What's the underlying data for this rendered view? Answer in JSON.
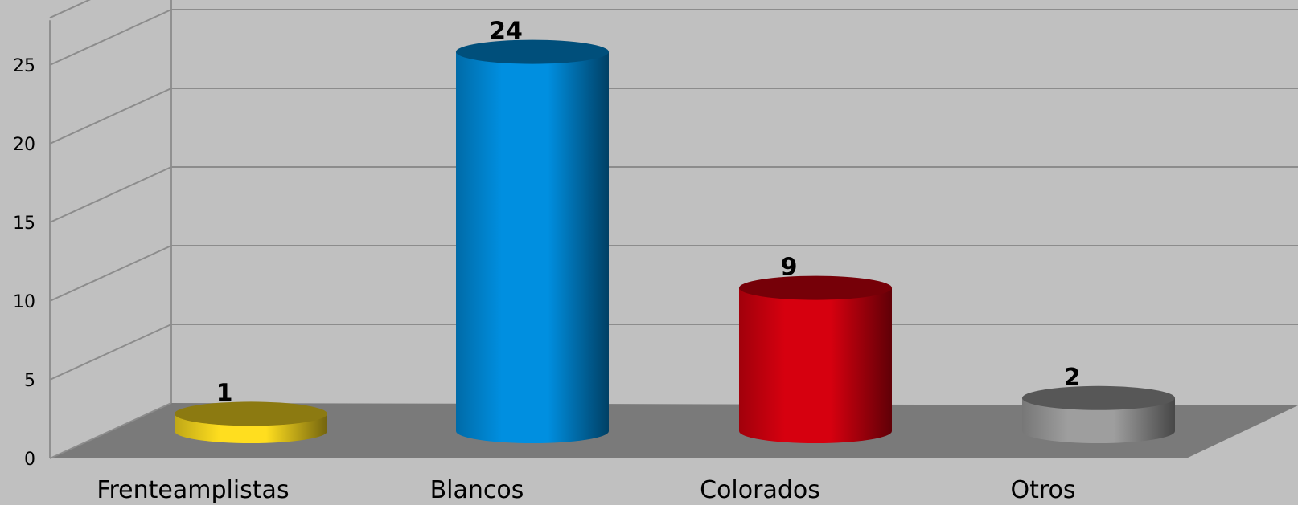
{
  "chart_data": {
    "type": "bar",
    "style": "3d-cylinder",
    "title": "",
    "xlabel": "",
    "ylabel": "",
    "categories": [
      "Frenteamplistas",
      "Blancos",
      "Colorados",
      "Otros"
    ],
    "values": [
      1,
      24,
      9,
      2
    ],
    "data_labels": [
      "1",
      "24",
      "9",
      "2"
    ],
    "colors": [
      "#ffde1f",
      "#008fe0",
      "#d6000f",
      "#9e9e9e"
    ],
    "ylim": [
      0,
      28
    ],
    "yticks": [
      0,
      5,
      10,
      15,
      20,
      25
    ],
    "ytick_labels": [
      "0",
      "5",
      "10",
      "15",
      "20",
      "25"
    ],
    "grid": true,
    "legend": "none",
    "background": "#c0c0c0",
    "floor_color": "#7a7a7a"
  }
}
